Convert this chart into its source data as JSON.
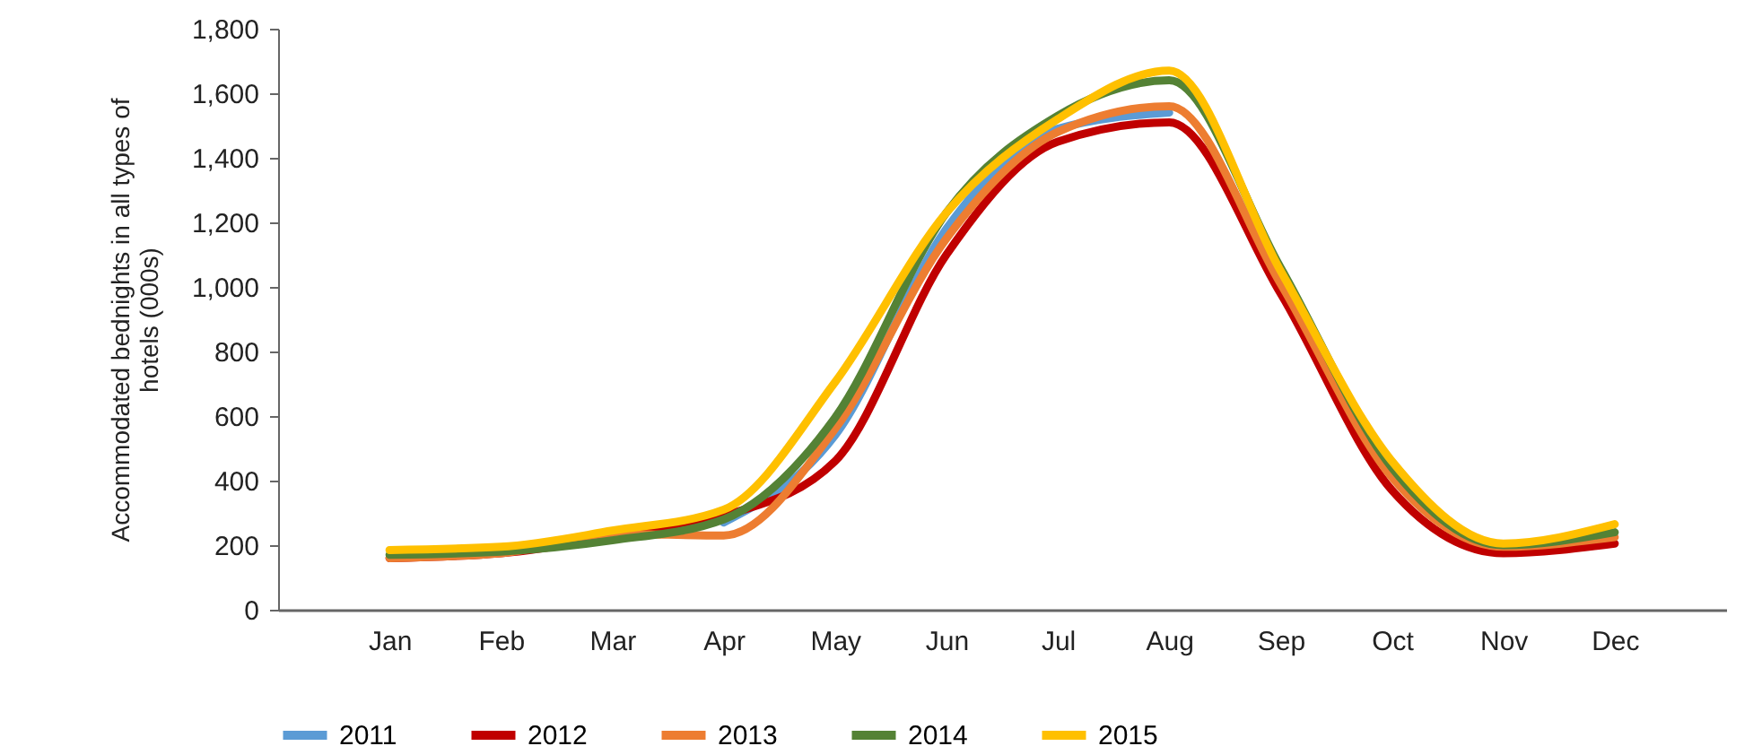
{
  "chart_data": {
    "type": "line",
    "ylabel": "Accommodated bednights in all types of hotels (000s)",
    "categories": [
      "Jan",
      "Feb",
      "Mar",
      "Apr",
      "May",
      "Jun",
      "Jul",
      "Aug",
      "Sep",
      "Oct",
      "Nov",
      "Dec"
    ],
    "series": [
      {
        "name": "2011",
        "color": "#5b9bd5",
        "values": [
          null,
          null,
          null,
          270,
          540,
          1180,
          1490,
          1540,
          null,
          null,
          null,
          null
        ]
      },
      {
        "name": "2012",
        "color": "#c00000",
        "values": [
          160,
          175,
          225,
          290,
          460,
          1100,
          1450,
          1510,
          980,
          370,
          175,
          205
        ]
      },
      {
        "name": "2013",
        "color": "#ed7d31",
        "values": [
          160,
          175,
          235,
          230,
          560,
          1150,
          1480,
          1560,
          1010,
          410,
          195,
          225
        ]
      },
      {
        "name": "2014",
        "color": "#548235",
        "values": [
          170,
          180,
          215,
          280,
          595,
          1230,
          1530,
          1640,
          1060,
          440,
          200,
          240
        ]
      },
      {
        "name": "2015",
        "color": "#ffc000",
        "values": [
          185,
          195,
          245,
          310,
          705,
          1230,
          1520,
          1670,
          1050,
          460,
          205,
          265
        ]
      }
    ],
    "ylim": [
      0,
      1800
    ],
    "yticks": [
      0,
      200,
      400,
      600,
      800,
      {
        "value": 1000,
        "label": "1,000"
      },
      {
        "value": 1200,
        "label": "1,200"
      },
      {
        "value": 1400,
        "label": "1,400"
      },
      {
        "value": 1600,
        "label": "1,600"
      },
      {
        "value": 1800,
        "label": "1,800"
      }
    ],
    "grid": false,
    "legend": "bottom",
    "line_style": "solid",
    "marker": "none"
  }
}
